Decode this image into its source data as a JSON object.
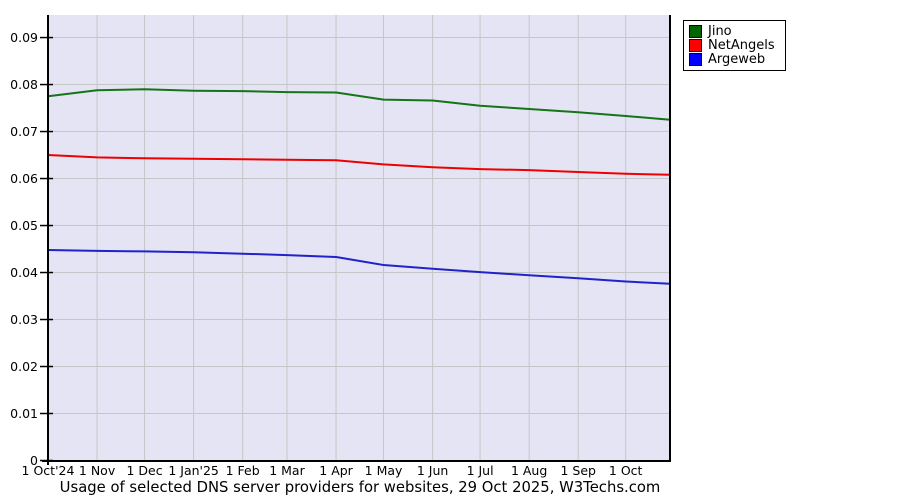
{
  "title": "Usage of selected DNS server providers for websites, 29 Oct 2025, W3Techs.com",
  "chart_data": {
    "type": "line",
    "title": "Usage of selected DNS server providers for websites, 29 Oct 2025, W3Techs.com",
    "xlabel": "",
    "ylabel": "",
    "grid": true,
    "legend_position": "top-right",
    "plot_bg": "#e4e4f4",
    "grid_color": "#c6c6c6",
    "axis_color": "#000000",
    "ylim": [
      0,
      0.0948
    ],
    "x_total_days": 393,
    "x_ticks": [
      {
        "label": "1 Oct'24",
        "day": 0
      },
      {
        "label": "1 Nov",
        "day": 31
      },
      {
        "label": "1 Dec",
        "day": 61
      },
      {
        "label": "1 Jan'25",
        "day": 92
      },
      {
        "label": "1 Feb",
        "day": 123
      },
      {
        "label": "1 Mar",
        "day": 151
      },
      {
        "label": "1 Apr",
        "day": 182
      },
      {
        "label": "1 May",
        "day": 212
      },
      {
        "label": "1 Jun",
        "day": 243
      },
      {
        "label": "1 Jul",
        "day": 273
      },
      {
        "label": "1 Aug",
        "day": 304
      },
      {
        "label": "1 Sep",
        "day": 335
      },
      {
        "label": "1 Oct",
        "day": 365
      }
    ],
    "y_ticks": [
      {
        "value": 0.09,
        "label": "0.09"
      },
      {
        "value": 0.08,
        "label": "0.08"
      },
      {
        "value": 0.07,
        "label": "0.07"
      },
      {
        "value": 0.06,
        "label": "0.06"
      },
      {
        "value": 0.05,
        "label": "0.05"
      },
      {
        "value": 0.04,
        "label": "0.04"
      },
      {
        "value": 0.03,
        "label": "0.03"
      },
      {
        "value": 0.02,
        "label": "0.02"
      },
      {
        "value": 0.01,
        "label": "0.01"
      },
      {
        "value": 0,
        "label": "0"
      }
    ],
    "x_days": [
      0,
      31,
      61,
      92,
      123,
      151,
      182,
      212,
      243,
      273,
      304,
      335,
      365,
      393
    ],
    "series": [
      {
        "name": "Jino",
        "swatch_color": "#006400",
        "line_color": "#177317",
        "values": [
          0.0775,
          0.0788,
          0.079,
          0.0787,
          0.0786,
          0.0784,
          0.0783,
          0.0768,
          0.0766,
          0.0755,
          0.0748,
          0.0741,
          0.0733,
          0.0725
        ]
      },
      {
        "name": "NetAngels",
        "swatch_color": "#ff0000",
        "line_color": "#ee0000",
        "values": [
          0.065,
          0.0645,
          0.0643,
          0.0642,
          0.0641,
          0.064,
          0.0639,
          0.063,
          0.0624,
          0.062,
          0.0618,
          0.0614,
          0.061,
          0.0608
        ]
      },
      {
        "name": "Argeweb",
        "swatch_color": "#0000ff",
        "line_color": "#2222cc",
        "values": [
          0.0448,
          0.0446,
          0.0445,
          0.0443,
          0.044,
          0.0437,
          0.0433,
          0.0416,
          0.0408,
          0.0401,
          0.0394,
          0.0388,
          0.0381,
          0.0376
        ]
      }
    ]
  }
}
